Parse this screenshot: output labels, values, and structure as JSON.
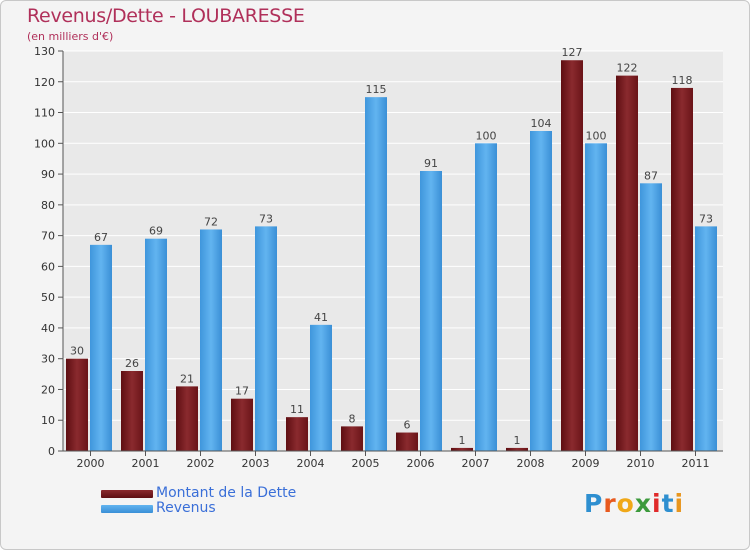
{
  "title": "Revenus/Dette - LOUBARESSE",
  "subtitle": "(en milliers d'€)",
  "logo": {
    "text": "Proxiti",
    "letter_colors": [
      "#2e8fd0",
      "#e85a1e",
      "#f0a818",
      "#3c9a3c",
      "#e02a2a",
      "#2e8fd0",
      "#e8961e"
    ]
  },
  "colors": {
    "debt": "#7a1a1f",
    "revenue": "#4ea6e8",
    "title": "#b0305a",
    "axis_text": "#333333",
    "grid": "#ffffff"
  },
  "chart_data": {
    "type": "bar",
    "title": "Revenus/Dette - LOUBARESSE",
    "subtitle": "(en milliers d'€)",
    "categories": [
      "2000",
      "2001",
      "2002",
      "2003",
      "2004",
      "2005",
      "2006",
      "2007",
      "2008",
      "2009",
      "2010",
      "2011"
    ],
    "series": [
      {
        "name": "Montant de la Dette",
        "values": [
          30,
          26,
          21,
          17,
          11,
          8,
          6,
          1,
          1,
          127,
          122,
          118
        ]
      },
      {
        "name": "Revenus",
        "values": [
          67,
          69,
          72,
          73,
          41,
          115,
          91,
          100,
          104,
          100,
          87,
          73
        ]
      }
    ],
    "ylim": [
      0,
      130
    ],
    "yticks": [
      0,
      10,
      20,
      30,
      40,
      50,
      60,
      70,
      80,
      90,
      100,
      110,
      120,
      130
    ],
    "grid": true,
    "legend_position": "bottom-left"
  }
}
